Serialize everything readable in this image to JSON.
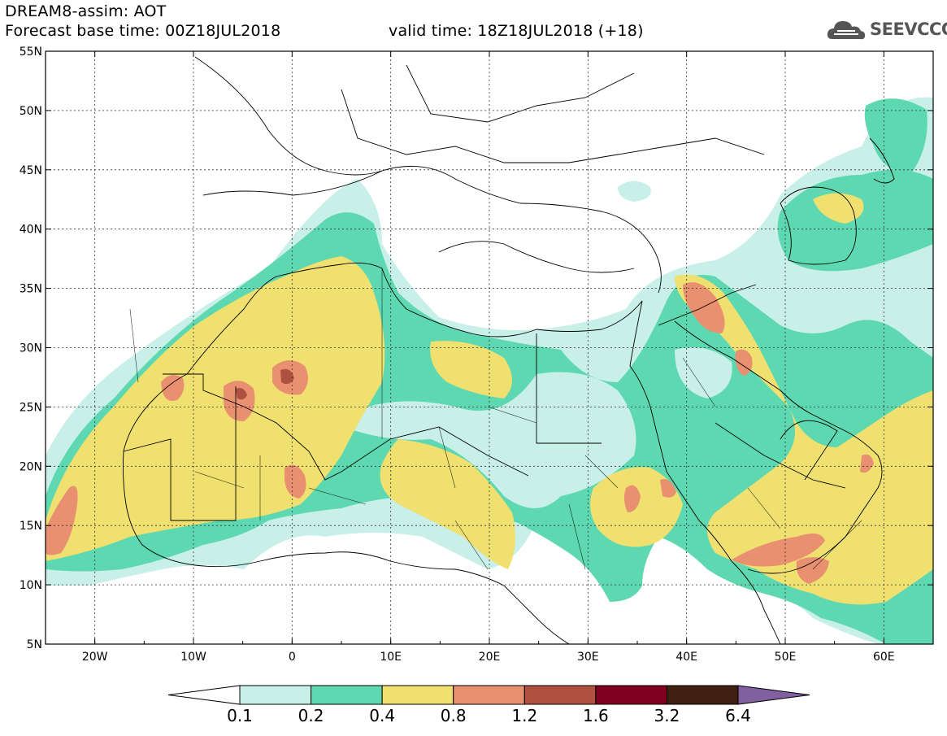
{
  "header": {
    "title": "DREAM8-assim: AOT",
    "base_time": "Forecast base time: 00Z18JUL2018",
    "valid_time": "valid time: 18Z18JUL2018 (+18)"
  },
  "logo": {
    "text": "SEEVCCC",
    "icon": "cloud-icon"
  },
  "map": {
    "lat_labels": [
      "55N",
      "50N",
      "45N",
      "40N",
      "35N",
      "30N",
      "25N",
      "20N",
      "15N",
      "10N",
      "5N"
    ],
    "lon_labels": [
      "20W",
      "10W",
      "0",
      "10E",
      "20E",
      "30E",
      "40E",
      "50E",
      "60E"
    ],
    "lon_min": -25,
    "lon_max": 65,
    "lat_min": 5,
    "lat_max": 55
  },
  "legend": {
    "values": [
      "0.1",
      "0.2",
      "0.4",
      "0.8",
      "1.2",
      "1.6",
      "3.2",
      "6.4"
    ],
    "colors": [
      "#c8f0e8",
      "#5ed8b0",
      "#f0e070",
      "#e89070",
      "#b05040",
      "#800020",
      "#402010",
      "#8060a0"
    ],
    "under_color": "#ffffff"
  }
}
